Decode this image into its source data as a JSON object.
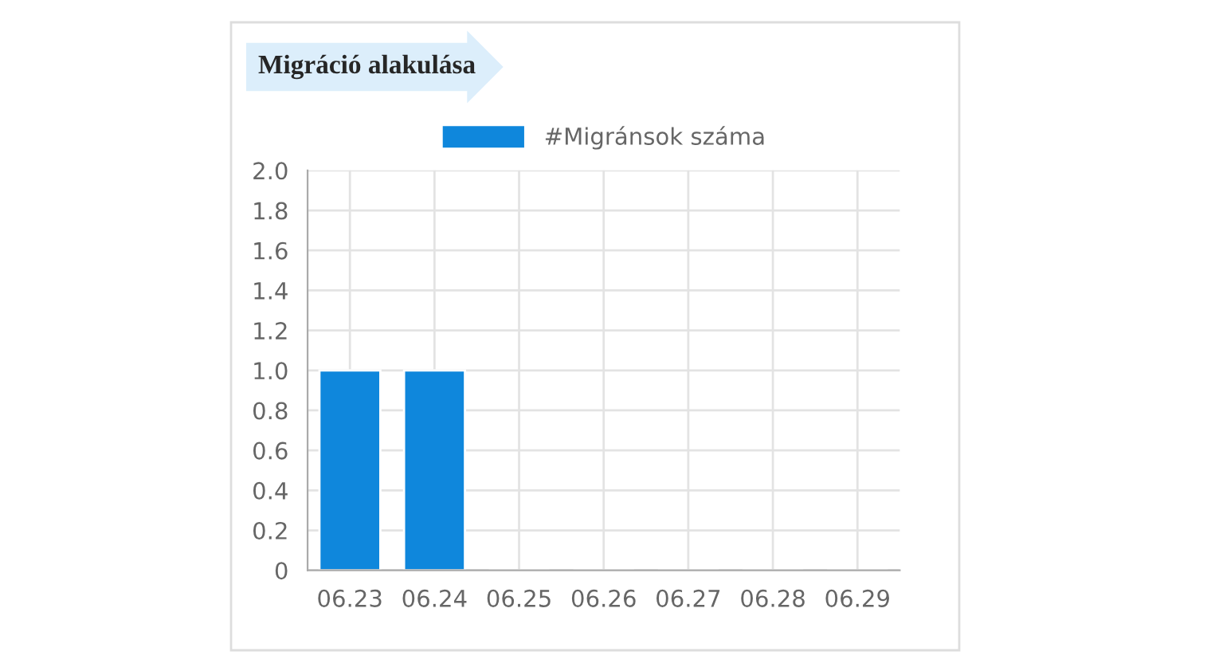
{
  "chart_data": {
    "type": "bar",
    "title": "Migráció alakulása",
    "categories": [
      "06.23",
      "06.24",
      "06.25",
      "06.26",
      "06.27",
      "06.28",
      "06.29"
    ],
    "series": [
      {
        "name": "#Migránsok száma",
        "color": "#0f87dc",
        "values": [
          1,
          1,
          0,
          0,
          0,
          0,
          0
        ]
      }
    ],
    "ylim": [
      0,
      2
    ],
    "yticks": [
      0,
      0.2,
      0.4,
      0.6,
      0.8,
      {
        "value": 1,
        "label": "1.0"
      },
      1.2,
      1.4,
      1.6,
      1.8,
      {
        "value": 2,
        "label": "2.0"
      }
    ],
    "grid": true,
    "legend": "top"
  }
}
